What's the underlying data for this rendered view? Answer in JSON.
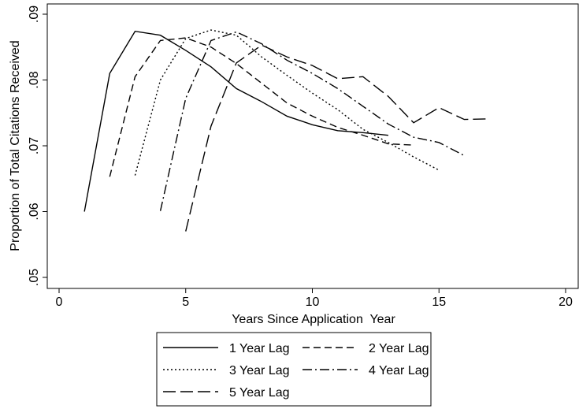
{
  "chart_data": {
    "type": "line",
    "x_label": "Years Since Application  Year",
    "y_label": "Proportion of Total Citations Received",
    "xlim": [
      0,
      20
    ],
    "xticks": [
      0,
      5,
      10,
      15,
      20
    ],
    "ylim": [
      0.05,
      0.09
    ],
    "yticks": [
      {
        "value": 0.05,
        "label": ".05"
      },
      {
        "value": 0.06,
        "label": ".06"
      },
      {
        "value": 0.07,
        "label": ".07"
      },
      {
        "value": 0.08,
        "label": ".08"
      },
      {
        "value": 0.09,
        "label": ".09"
      }
    ],
    "series": [
      {
        "name": "1 Year Lag",
        "color": "#000000",
        "dash": "none",
        "x": [
          1,
          2,
          3,
          4,
          5,
          6,
          7,
          8,
          9,
          10,
          11,
          12,
          13
        ],
        "values": [
          0.06,
          0.081,
          0.0874,
          0.0868,
          0.0845,
          0.082,
          0.0787,
          0.0767,
          0.0745,
          0.0732,
          0.0723,
          0.072,
          0.0716
        ]
      },
      {
        "name": "2 Year Lag",
        "color": "#000000",
        "dash": "9,5",
        "x": [
          2,
          3,
          4,
          5,
          6,
          7,
          8,
          9,
          10,
          11,
          12,
          13,
          14
        ],
        "values": [
          0.0653,
          0.0805,
          0.086,
          0.0864,
          0.085,
          0.0825,
          0.0795,
          0.0765,
          0.0745,
          0.0728,
          0.0716,
          0.0703,
          0.0701
        ]
      },
      {
        "name": "3 Year Lag",
        "color": "#000000",
        "dash": "2,3",
        "x": [
          3,
          4,
          5,
          6,
          7,
          8,
          9,
          10,
          11,
          12,
          13,
          14,
          15
        ],
        "values": [
          0.0655,
          0.08,
          0.0863,
          0.0876,
          0.0868,
          0.0835,
          0.0807,
          0.078,
          0.0755,
          0.0725,
          0.0705,
          0.0683,
          0.0663
        ]
      },
      {
        "name": "4 Year Lag",
        "color": "#000000",
        "dash": "12,4,2,4",
        "x": [
          4,
          5,
          6,
          7,
          8,
          9,
          10,
          11,
          12,
          13,
          14,
          15,
          16
        ],
        "values": [
          0.0601,
          0.0772,
          0.086,
          0.0873,
          0.0855,
          0.083,
          0.081,
          0.0787,
          0.076,
          0.0733,
          0.0713,
          0.0705,
          0.0685
        ]
      },
      {
        "name": "5 Year Lag",
        "color": "#000000",
        "dash": "16,6",
        "x": [
          5,
          6,
          7,
          8,
          9,
          10,
          11,
          12,
          13,
          14,
          15,
          16,
          17
        ],
        "values": [
          0.057,
          0.073,
          0.0826,
          0.0853,
          0.0835,
          0.0822,
          0.0802,
          0.0805,
          0.0775,
          0.0735,
          0.0758,
          0.074,
          0.0741
        ]
      }
    ]
  }
}
